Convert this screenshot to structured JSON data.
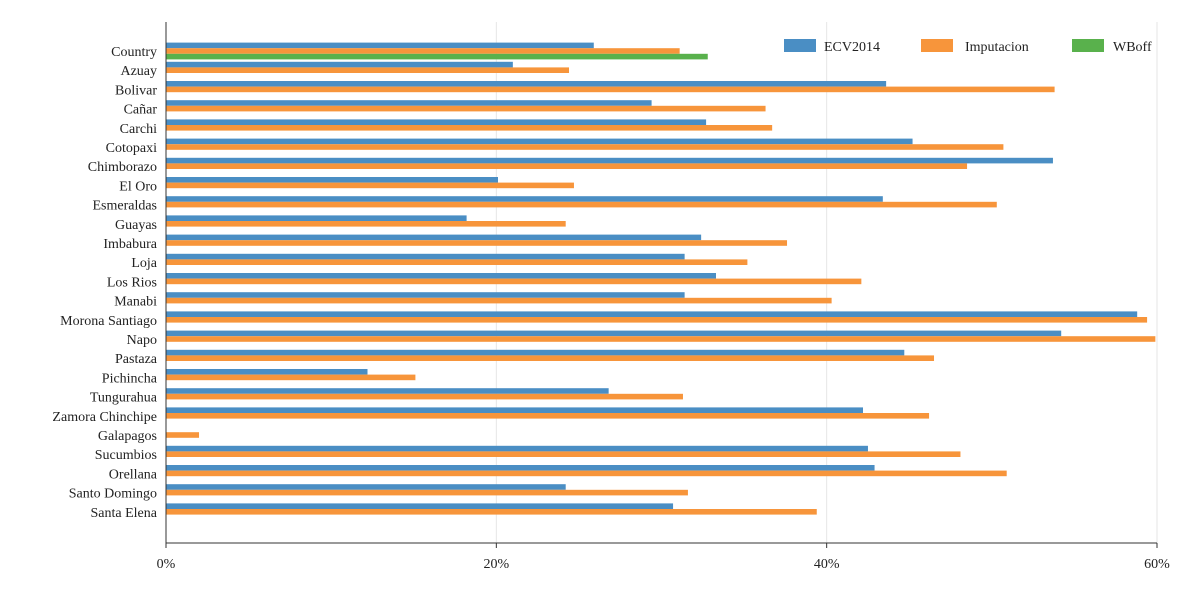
{
  "chart_data": {
    "type": "bar",
    "orientation": "horizontal",
    "categories": [
      "Country",
      "Azuay",
      "Bolivar",
      "Cañar",
      "Carchi",
      "Cotopaxi",
      "Chimborazo",
      "El Oro",
      "Esmeraldas",
      "Guayas",
      "Imbabura",
      "Loja",
      "Los Rios",
      "Manabi",
      "Morona Santiago",
      "Napo",
      "Pastaza",
      "Pichincha",
      "Tungurahua",
      "Zamora Chinchipe",
      "Galapagos",
      "Sucumbios",
      "Orellana",
      "Santo Domingo",
      "Santa Elena"
    ],
    "series": [
      {
        "name": "ECV2014",
        "color": "#4a8ec4",
        "values": [
          25.9,
          21.0,
          43.6,
          29.4,
          32.7,
          45.2,
          53.7,
          20.1,
          43.4,
          18.2,
          32.4,
          31.4,
          33.3,
          31.4,
          58.8,
          54.2,
          44.7,
          12.2,
          26.8,
          42.2,
          null,
          42.5,
          42.9,
          24.2,
          30.7
        ]
      },
      {
        "name": "Imputacion",
        "color": "#f7953b",
        "values": [
          31.1,
          24.4,
          53.8,
          36.3,
          36.7,
          50.7,
          48.5,
          24.7,
          50.3,
          24.2,
          37.6,
          35.2,
          42.1,
          40.3,
          59.4,
          59.9,
          46.5,
          15.1,
          31.3,
          46.2,
          2.0,
          48.1,
          50.9,
          31.6,
          39.4
        ]
      },
      {
        "name": "WBoff",
        "color": "#59b14c",
        "values": [
          32.8,
          null,
          null,
          null,
          null,
          null,
          null,
          null,
          null,
          null,
          null,
          null,
          null,
          null,
          null,
          null,
          null,
          null,
          null,
          null,
          null,
          null,
          null,
          null,
          null
        ]
      }
    ],
    "xlim": [
      0,
      60
    ],
    "xticks": [
      "0%",
      "20%",
      "40%",
      "60%"
    ],
    "xtick_values": [
      0,
      20,
      40,
      60
    ],
    "grid": true,
    "legend_position": "top-right"
  }
}
